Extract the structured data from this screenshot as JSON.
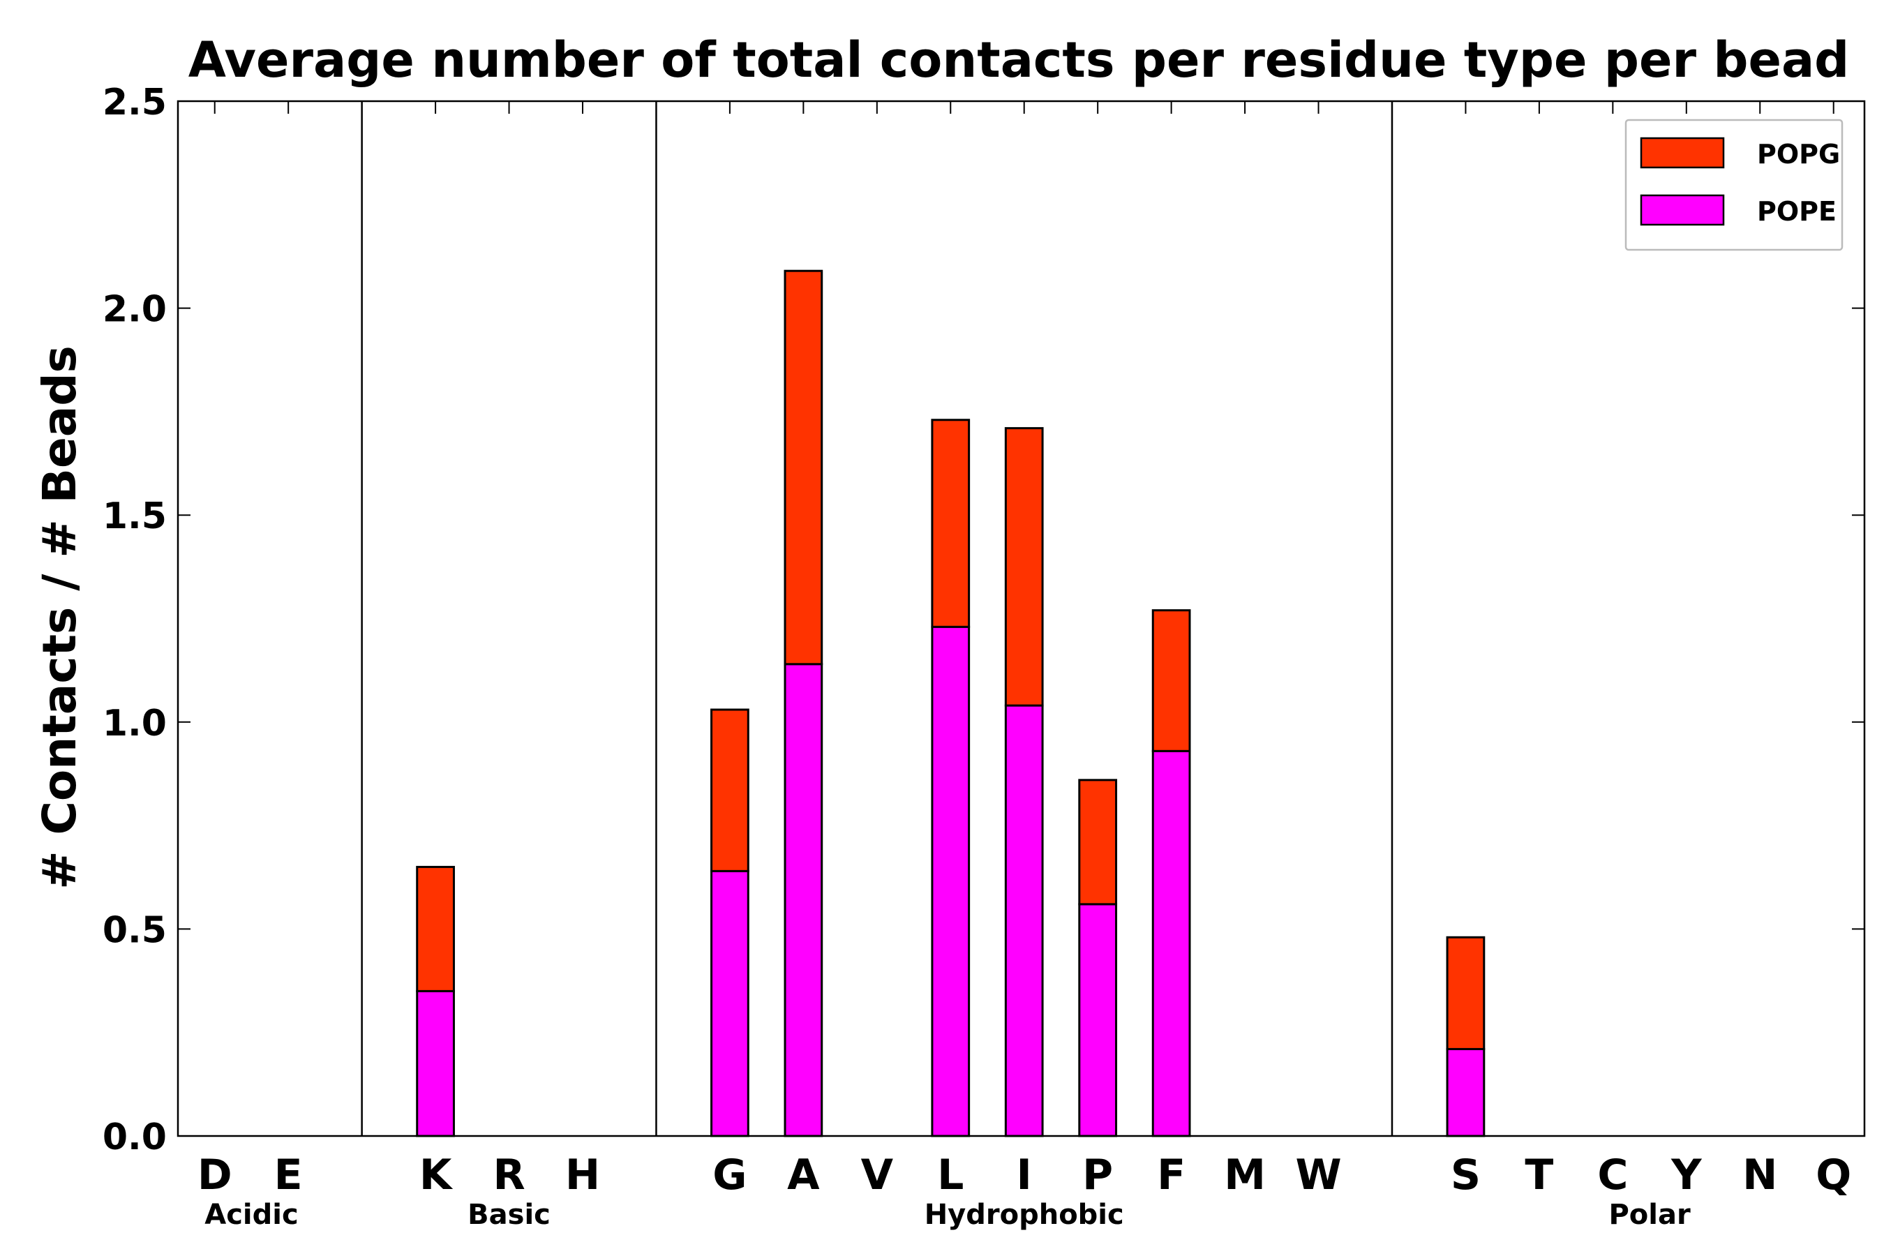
{
  "chart_data": {
    "type": "bar",
    "stacked": true,
    "title": "Average number of total contacts per residue type per bead",
    "xlabel": "",
    "ylabel": "# Contacts / # Beads",
    "ylim": [
      0,
      2.5
    ],
    "yticks": [
      "0.0",
      "0.5",
      "1.0",
      "1.5",
      "2.0",
      "2.5"
    ],
    "grid": false,
    "legend_position": "top-right",
    "categories": [
      "D",
      "E",
      "K",
      "R",
      "H",
      "G",
      "A",
      "V",
      "L",
      "I",
      "P",
      "F",
      "M",
      "W",
      "S",
      "T",
      "C",
      "Y",
      "N",
      "Q"
    ],
    "series": [
      {
        "name": "POPE",
        "color": "#ff00ff",
        "values": [
          0,
          0,
          0.35,
          0,
          0,
          0.64,
          1.14,
          0,
          1.23,
          1.04,
          0.56,
          0.93,
          0,
          0,
          0.21,
          0,
          0,
          0,
          0,
          0
        ]
      },
      {
        "name": "POPG",
        "color": "#ff3300",
        "values": [
          0,
          0,
          0.3,
          0,
          0,
          0.39,
          0.95,
          0,
          0.5,
          0.67,
          0.3,
          0.34,
          0,
          0,
          0.27,
          0,
          0,
          0,
          0,
          0
        ]
      }
    ],
    "legend": [
      {
        "name": "POPG",
        "color": "#ff3300"
      },
      {
        "name": "POPE",
        "color": "#ff00ff"
      }
    ],
    "groups": [
      {
        "label": "Acidic",
        "members": [
          "D",
          "E"
        ]
      },
      {
        "label": "Basic",
        "members": [
          "K",
          "R",
          "H"
        ]
      },
      {
        "label": "Hydrophobic",
        "members": [
          "G",
          "A",
          "V",
          "L",
          "I",
          "P",
          "F",
          "M",
          "W"
        ]
      },
      {
        "label": "Polar",
        "members": [
          "S",
          "T",
          "C",
          "Y",
          "N",
          "Q"
        ]
      }
    ]
  }
}
